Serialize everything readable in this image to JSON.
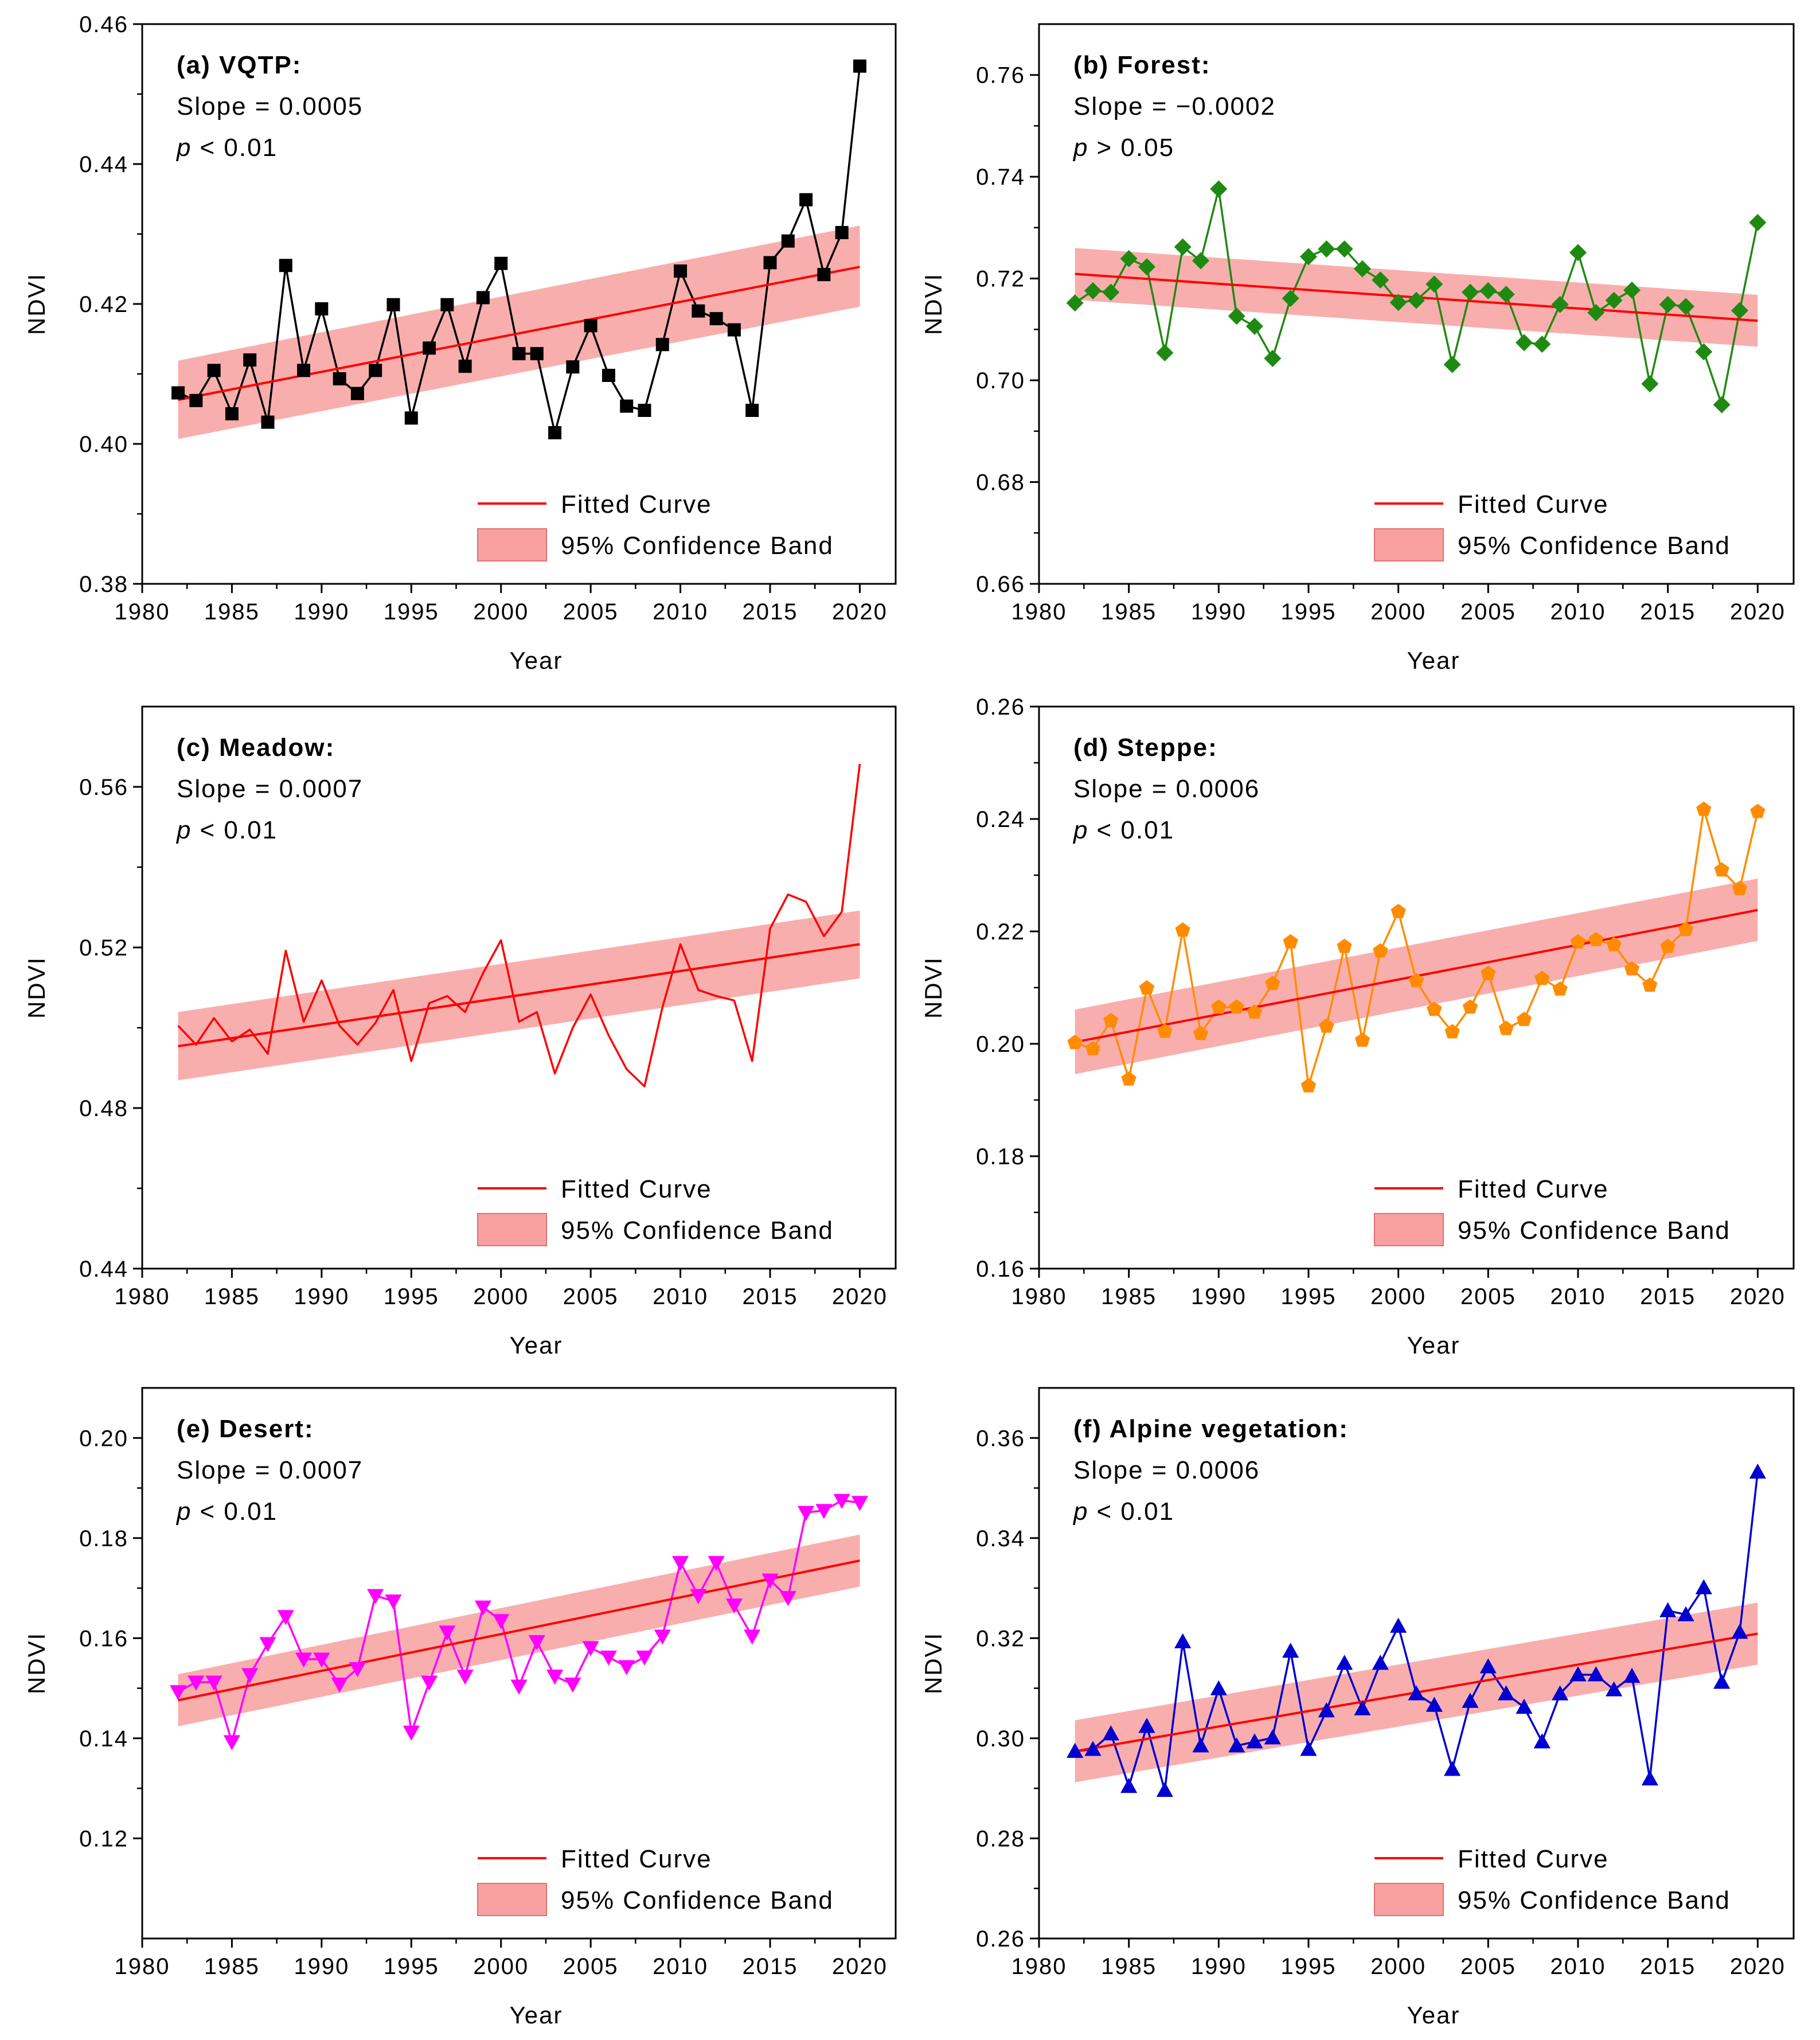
{
  "figure": {
    "xlabel": "Year",
    "ylabel": "NDVI"
  },
  "chart_data": [
    {
      "type": "line",
      "panel": "a",
      "title": "(a) VQTP:",
      "slope_text": "Slope = 0.0005",
      "p_symbol": "p",
      "p_text": "< 0.01",
      "series_color": "#000000",
      "marker": "square",
      "xlabel": "Year",
      "ylabel": "NDVI",
      "xlim": [
        1980,
        2022
      ],
      "ylim": [
        0.38,
        0.46
      ],
      "xticks": [
        1980,
        1985,
        1990,
        1995,
        2000,
        2005,
        2010,
        2015,
        2020
      ],
      "xtick_labels": [
        "1980",
        "1985",
        "1990",
        "1995",
        "2000",
        "2005",
        "2010",
        "2015",
        "2020"
      ],
      "yticks": [
        0.38,
        0.4,
        0.42,
        0.44,
        0.46
      ],
      "ytick_labels": [
        "0.38",
        "0.40",
        "0.42",
        "0.44",
        "0.46"
      ],
      "x": [
        1982,
        1983,
        1984,
        1985,
        1986,
        1987,
        1988,
        1989,
        1990,
        1991,
        1992,
        1993,
        1994,
        1995,
        1996,
        1997,
        1998,
        1999,
        2000,
        2001,
        2002,
        2003,
        2004,
        2005,
        2006,
        2007,
        2008,
        2009,
        2010,
        2011,
        2012,
        2013,
        2014,
        2015,
        2016,
        2017,
        2018,
        2019,
        2020
      ],
      "values": [
        0.4073,
        0.4062,
        0.4105,
        0.4043,
        0.412,
        0.4031,
        0.4255,
        0.4105,
        0.4193,
        0.4093,
        0.4072,
        0.4105,
        0.4199,
        0.4037,
        0.4137,
        0.4199,
        0.4111,
        0.4209,
        0.4258,
        0.4129,
        0.4129,
        0.4016,
        0.411,
        0.4169,
        0.4098,
        0.4054,
        0.4048,
        0.4142,
        0.4247,
        0.419,
        0.4179,
        0.4163,
        0.4048,
        0.4259,
        0.429,
        0.4349,
        0.4242,
        0.4302,
        0.454
      ],
      "fit": {
        "x": [
          1982,
          2020
        ],
        "y": [
          0.4063,
          0.4253
        ]
      },
      "band_upper": [
        0.4119,
        0.4312
      ],
      "band_lower": [
        0.4007,
        0.4196
      ],
      "legend": {
        "fitted": "Fitted Curve",
        "band": "95% Confidence Band",
        "position": "lower-right"
      }
    },
    {
      "type": "line",
      "panel": "b",
      "title": "(b) Forest:",
      "slope_text": "Slope = −0.0002",
      "p_symbol": "p",
      "p_text": "> 0.05",
      "series_color": "#1f8a12",
      "marker": "diamond",
      "xlabel": "Year",
      "ylabel": "NDVI",
      "xlim": [
        1980,
        2022
      ],
      "ylim": [
        0.66,
        0.77
      ],
      "xticks": [
        1980,
        1985,
        1990,
        1995,
        2000,
        2005,
        2010,
        2015,
        2020
      ],
      "xtick_labels": [
        "1980",
        "1985",
        "1990",
        "1995",
        "2000",
        "2005",
        "2010",
        "2015",
        "2020"
      ],
      "yticks": [
        0.66,
        0.68,
        0.7,
        0.72,
        0.74,
        0.76
      ],
      "ytick_labels": [
        "0.66",
        "0.68",
        "0.70",
        "0.72",
        "0.74",
        "0.76"
      ],
      "x": [
        1982,
        1983,
        1984,
        1985,
        1986,
        1987,
        1988,
        1989,
        1990,
        1991,
        1992,
        1993,
        1994,
        1995,
        1996,
        1997,
        1998,
        1999,
        2000,
        2001,
        2002,
        2003,
        2004,
        2005,
        2006,
        2007,
        2008,
        2009,
        2010,
        2011,
        2012,
        2013,
        2014,
        2015,
        2016,
        2017,
        2018,
        2019,
        2020
      ],
      "values": [
        0.7152,
        0.7176,
        0.7173,
        0.7239,
        0.7223,
        0.7054,
        0.7262,
        0.7235,
        0.7376,
        0.7126,
        0.7106,
        0.7043,
        0.7161,
        0.7243,
        0.7258,
        0.7258,
        0.7219,
        0.7197,
        0.7153,
        0.7157,
        0.7189,
        0.7031,
        0.7173,
        0.7176,
        0.7169,
        0.7074,
        0.7071,
        0.7149,
        0.7251,
        0.7133,
        0.7157,
        0.7177,
        0.6993,
        0.7149,
        0.7145,
        0.7056,
        0.6952,
        0.7137,
        0.731
      ],
      "fit": {
        "x": [
          1982,
          2020
        ],
        "y": [
          0.7209,
          0.7117
        ]
      },
      "band_upper": [
        0.726,
        0.7168
      ],
      "band_lower": [
        0.7158,
        0.7066
      ],
      "legend": {
        "fitted": "Fitted Curve",
        "band": "95% Confidence Band",
        "position": "lower-right"
      }
    },
    {
      "type": "line",
      "panel": "c",
      "title": "(c) Meadow:",
      "slope_text": "Slope = 0.0007",
      "p_symbol": "p",
      "p_text": "< 0.01",
      "series_color": "#ff0000",
      "marker": "circle",
      "xlabel": "Year",
      "ylabel": "NDVI",
      "xlim": [
        1980,
        2022
      ],
      "ylim": [
        0.44,
        0.58
      ],
      "xticks": [
        1980,
        1985,
        1990,
        1995,
        2000,
        2005,
        2010,
        2015,
        2020
      ],
      "xtick_labels": [
        "1980",
        "1985",
        "1990",
        "1995",
        "2000",
        "2005",
        "2010",
        "2015",
        "2020"
      ],
      "yticks": [
        0.44,
        0.48,
        0.52,
        0.56
      ],
      "ytick_labels": [
        "0.44",
        "0.48",
        "0.52",
        "0.56"
      ],
      "x": [
        1982,
        1983,
        1984,
        1985,
        1986,
        1987,
        1988,
        1989,
        1990,
        1991,
        1992,
        1993,
        1994,
        1995,
        1996,
        1997,
        1998,
        1999,
        2000,
        2001,
        2002,
        2003,
        2004,
        2005,
        2006,
        2007,
        2008,
        2009,
        2010,
        2011,
        2012,
        2013,
        2014,
        2015,
        2016,
        2017,
        2018,
        2019,
        2020
      ],
      "values": [
        0.5005,
        0.4958,
        0.5024,
        0.4966,
        0.4995,
        0.4935,
        0.5192,
        0.5015,
        0.5118,
        0.5005,
        0.4958,
        0.5012,
        0.5094,
        0.4917,
        0.5061,
        0.5079,
        0.5039,
        0.5136,
        0.5218,
        0.5015,
        0.5039,
        0.4886,
        0.5,
        0.5083,
        0.4981,
        0.4897,
        0.4854,
        0.5051,
        0.5208,
        0.5094,
        0.5079,
        0.5068,
        0.4917,
        0.5247,
        0.5332,
        0.5314,
        0.5228,
        0.5289,
        0.5657
      ],
      "fit": {
        "x": [
          1982,
          2020
        ],
        "y": [
          0.4954,
          0.5208
        ]
      },
      "band_upper": [
        0.5039,
        0.5292
      ],
      "band_lower": [
        0.4869,
        0.5123
      ],
      "legend": {
        "fitted": "Fitted Curve",
        "band": "95% Confidence Band",
        "position": "lower-right"
      }
    },
    {
      "type": "line",
      "panel": "d",
      "title": "(d) Steppe:",
      "slope_text": "Slope = 0.0006",
      "p_symbol": "p",
      "p_text": "< 0.01",
      "series_color": "#ff8c00",
      "marker": "pentagon",
      "xlabel": "Year",
      "ylabel": "NDVI",
      "xlim": [
        1980,
        2022
      ],
      "ylim": [
        0.16,
        0.26
      ],
      "xticks": [
        1980,
        1985,
        1990,
        1995,
        2000,
        2005,
        2010,
        2015,
        2020
      ],
      "xtick_labels": [
        "1980",
        "1985",
        "1990",
        "1995",
        "2000",
        "2005",
        "2010",
        "2015",
        "2020"
      ],
      "yticks": [
        0.16,
        0.18,
        0.2,
        0.22,
        0.24,
        0.26
      ],
      "ytick_labels": [
        "0.16",
        "0.18",
        "0.20",
        "0.22",
        "0.24",
        "0.26"
      ],
      "x": [
        1982,
        1983,
        1984,
        1985,
        1986,
        1987,
        1988,
        1989,
        1990,
        1991,
        1992,
        1993,
        1994,
        1995,
        1996,
        1997,
        1998,
        1999,
        2000,
        2001,
        2002,
        2003,
        2004,
        2005,
        2006,
        2007,
        2008,
        2009,
        2010,
        2011,
        2012,
        2013,
        2014,
        2015,
        2016,
        2017,
        2018,
        2019,
        2020
      ],
      "values": [
        0.2002,
        0.1991,
        0.2041,
        0.1937,
        0.2099,
        0.2022,
        0.2202,
        0.2018,
        0.2065,
        0.2065,
        0.2056,
        0.2107,
        0.2181,
        0.1925,
        0.2031,
        0.2173,
        0.2006,
        0.2165,
        0.2235,
        0.2112,
        0.2061,
        0.2021,
        0.2065,
        0.2125,
        0.2027,
        0.2043,
        0.2116,
        0.2097,
        0.2181,
        0.2185,
        0.2176,
        0.2133,
        0.2104,
        0.2173,
        0.2203,
        0.2417,
        0.2309,
        0.2276,
        0.2413
      ],
      "fit": {
        "x": [
          1982,
          2020
        ],
        "y": [
          0.2003,
          0.2238
        ]
      },
      "band_upper": [
        0.2061,
        0.2294
      ],
      "band_lower": [
        0.1946,
        0.2183
      ],
      "legend": {
        "fitted": "Fitted Curve",
        "band": "95% Confidence Band",
        "position": "lower-right"
      }
    },
    {
      "type": "line",
      "panel": "e",
      "title": "(e) Desert:",
      "slope_text": "Slope = 0.0007",
      "p_symbol": "p",
      "p_text": "< 0.01",
      "series_color": "#ff00ff",
      "marker": "triangle-down",
      "xlabel": "Year",
      "ylabel": "NDVI",
      "xlim": [
        1980,
        2022
      ],
      "ylim": [
        0.1,
        0.21
      ],
      "xticks": [
        1980,
        1985,
        1990,
        1995,
        2000,
        2005,
        2010,
        2015,
        2020
      ],
      "xtick_labels": [
        "1980",
        "1985",
        "1990",
        "1995",
        "2000",
        "2005",
        "2010",
        "2015",
        "2020"
      ],
      "yticks": [
        0.12,
        0.14,
        0.16,
        0.18,
        0.2
      ],
      "ytick_labels": [
        "0.12",
        "0.14",
        "0.16",
        "0.18",
        "0.20"
      ],
      "x": [
        1982,
        1983,
        1984,
        1985,
        1986,
        1987,
        1988,
        1989,
        1990,
        1991,
        1992,
        1993,
        1994,
        1995,
        1996,
        1997,
        1998,
        1999,
        2000,
        2001,
        2002,
        2003,
        2004,
        2005,
        2006,
        2007,
        2008,
        2009,
        2010,
        2011,
        2012,
        2013,
        2014,
        2015,
        2016,
        2017,
        2018,
        2019,
        2020
      ],
      "values": [
        0.1493,
        0.1512,
        0.1512,
        0.1393,
        0.1527,
        0.1589,
        0.1643,
        0.1558,
        0.1558,
        0.1508,
        0.1539,
        0.1685,
        0.1674,
        0.1412,
        0.1512,
        0.1612,
        0.1524,
        0.1662,
        0.1635,
        0.1504,
        0.1593,
        0.1524,
        0.1508,
        0.1581,
        0.1562,
        0.1543,
        0.1562,
        0.1604,
        0.1751,
        0.1685,
        0.1751,
        0.1666,
        0.1604,
        0.1716,
        0.1681,
        0.1851,
        0.1855,
        0.1875,
        0.1871
      ],
      "fit": {
        "x": [
          1982,
          2020
        ],
        "y": [
          0.1476,
          0.1755
        ]
      },
      "band_upper": [
        0.1528,
        0.1807
      ],
      "band_lower": [
        0.1424,
        0.1703
      ],
      "legend": {
        "fitted": "Fitted Curve",
        "band": "95% Confidence Band",
        "position": "lower-right"
      }
    },
    {
      "type": "line",
      "panel": "f",
      "title": "(f) Alpine vegetation:",
      "slope_text": "Slope = 0.0006",
      "p_symbol": "p",
      "p_text": "< 0.01",
      "series_color": "#0000d0",
      "marker": "triangle-up",
      "xlabel": "Year",
      "ylabel": "NDVI",
      "xlim": [
        1980,
        2022
      ],
      "ylim": [
        0.26,
        0.37
      ],
      "xticks": [
        1980,
        1985,
        1990,
        1995,
        2000,
        2005,
        2010,
        2015,
        2020
      ],
      "xtick_labels": [
        "1980",
        "1985",
        "1990",
        "1995",
        "2000",
        "2005",
        "2010",
        "2015",
        "2020"
      ],
      "yticks": [
        0.26,
        0.28,
        0.3,
        0.32,
        0.34,
        0.36
      ],
      "ytick_labels": [
        "0.26",
        "0.28",
        "0.30",
        "0.32",
        "0.34",
        "0.36"
      ],
      "x": [
        1982,
        1983,
        1984,
        1985,
        1986,
        1987,
        1988,
        1989,
        1990,
        1991,
        1992,
        1993,
        1994,
        1995,
        1996,
        1997,
        1998,
        1999,
        2000,
        2001,
        2002,
        2003,
        2004,
        2005,
        2006,
        2007,
        2008,
        2009,
        2010,
        2011,
        2012,
        2013,
        2014,
        2015,
        2016,
        2017,
        2018,
        2019,
        2020
      ],
      "values": [
        0.2974,
        0.2978,
        0.3009,
        0.2904,
        0.3024,
        0.2896,
        0.3193,
        0.2985,
        0.3099,
        0.2985,
        0.2993,
        0.3001,
        0.3174,
        0.2978,
        0.3055,
        0.315,
        0.3059,
        0.315,
        0.3224,
        0.3089,
        0.3066,
        0.2938,
        0.3074,
        0.3143,
        0.3089,
        0.3062,
        0.2993,
        0.3089,
        0.3127,
        0.3127,
        0.3097,
        0.3124,
        0.2919,
        0.3255,
        0.3247,
        0.3301,
        0.3112,
        0.3212,
        0.3532
      ],
      "fit": {
        "x": [
          1982,
          2020
        ],
        "y": [
          0.2974,
          0.3209
        ]
      },
      "band_upper": [
        0.3036,
        0.3271
      ],
      "band_lower": [
        0.2912,
        0.3147
      ],
      "legend": {
        "fitted": "Fitted Curve",
        "band": "95% Confidence Band",
        "position": "lower-right"
      }
    }
  ]
}
